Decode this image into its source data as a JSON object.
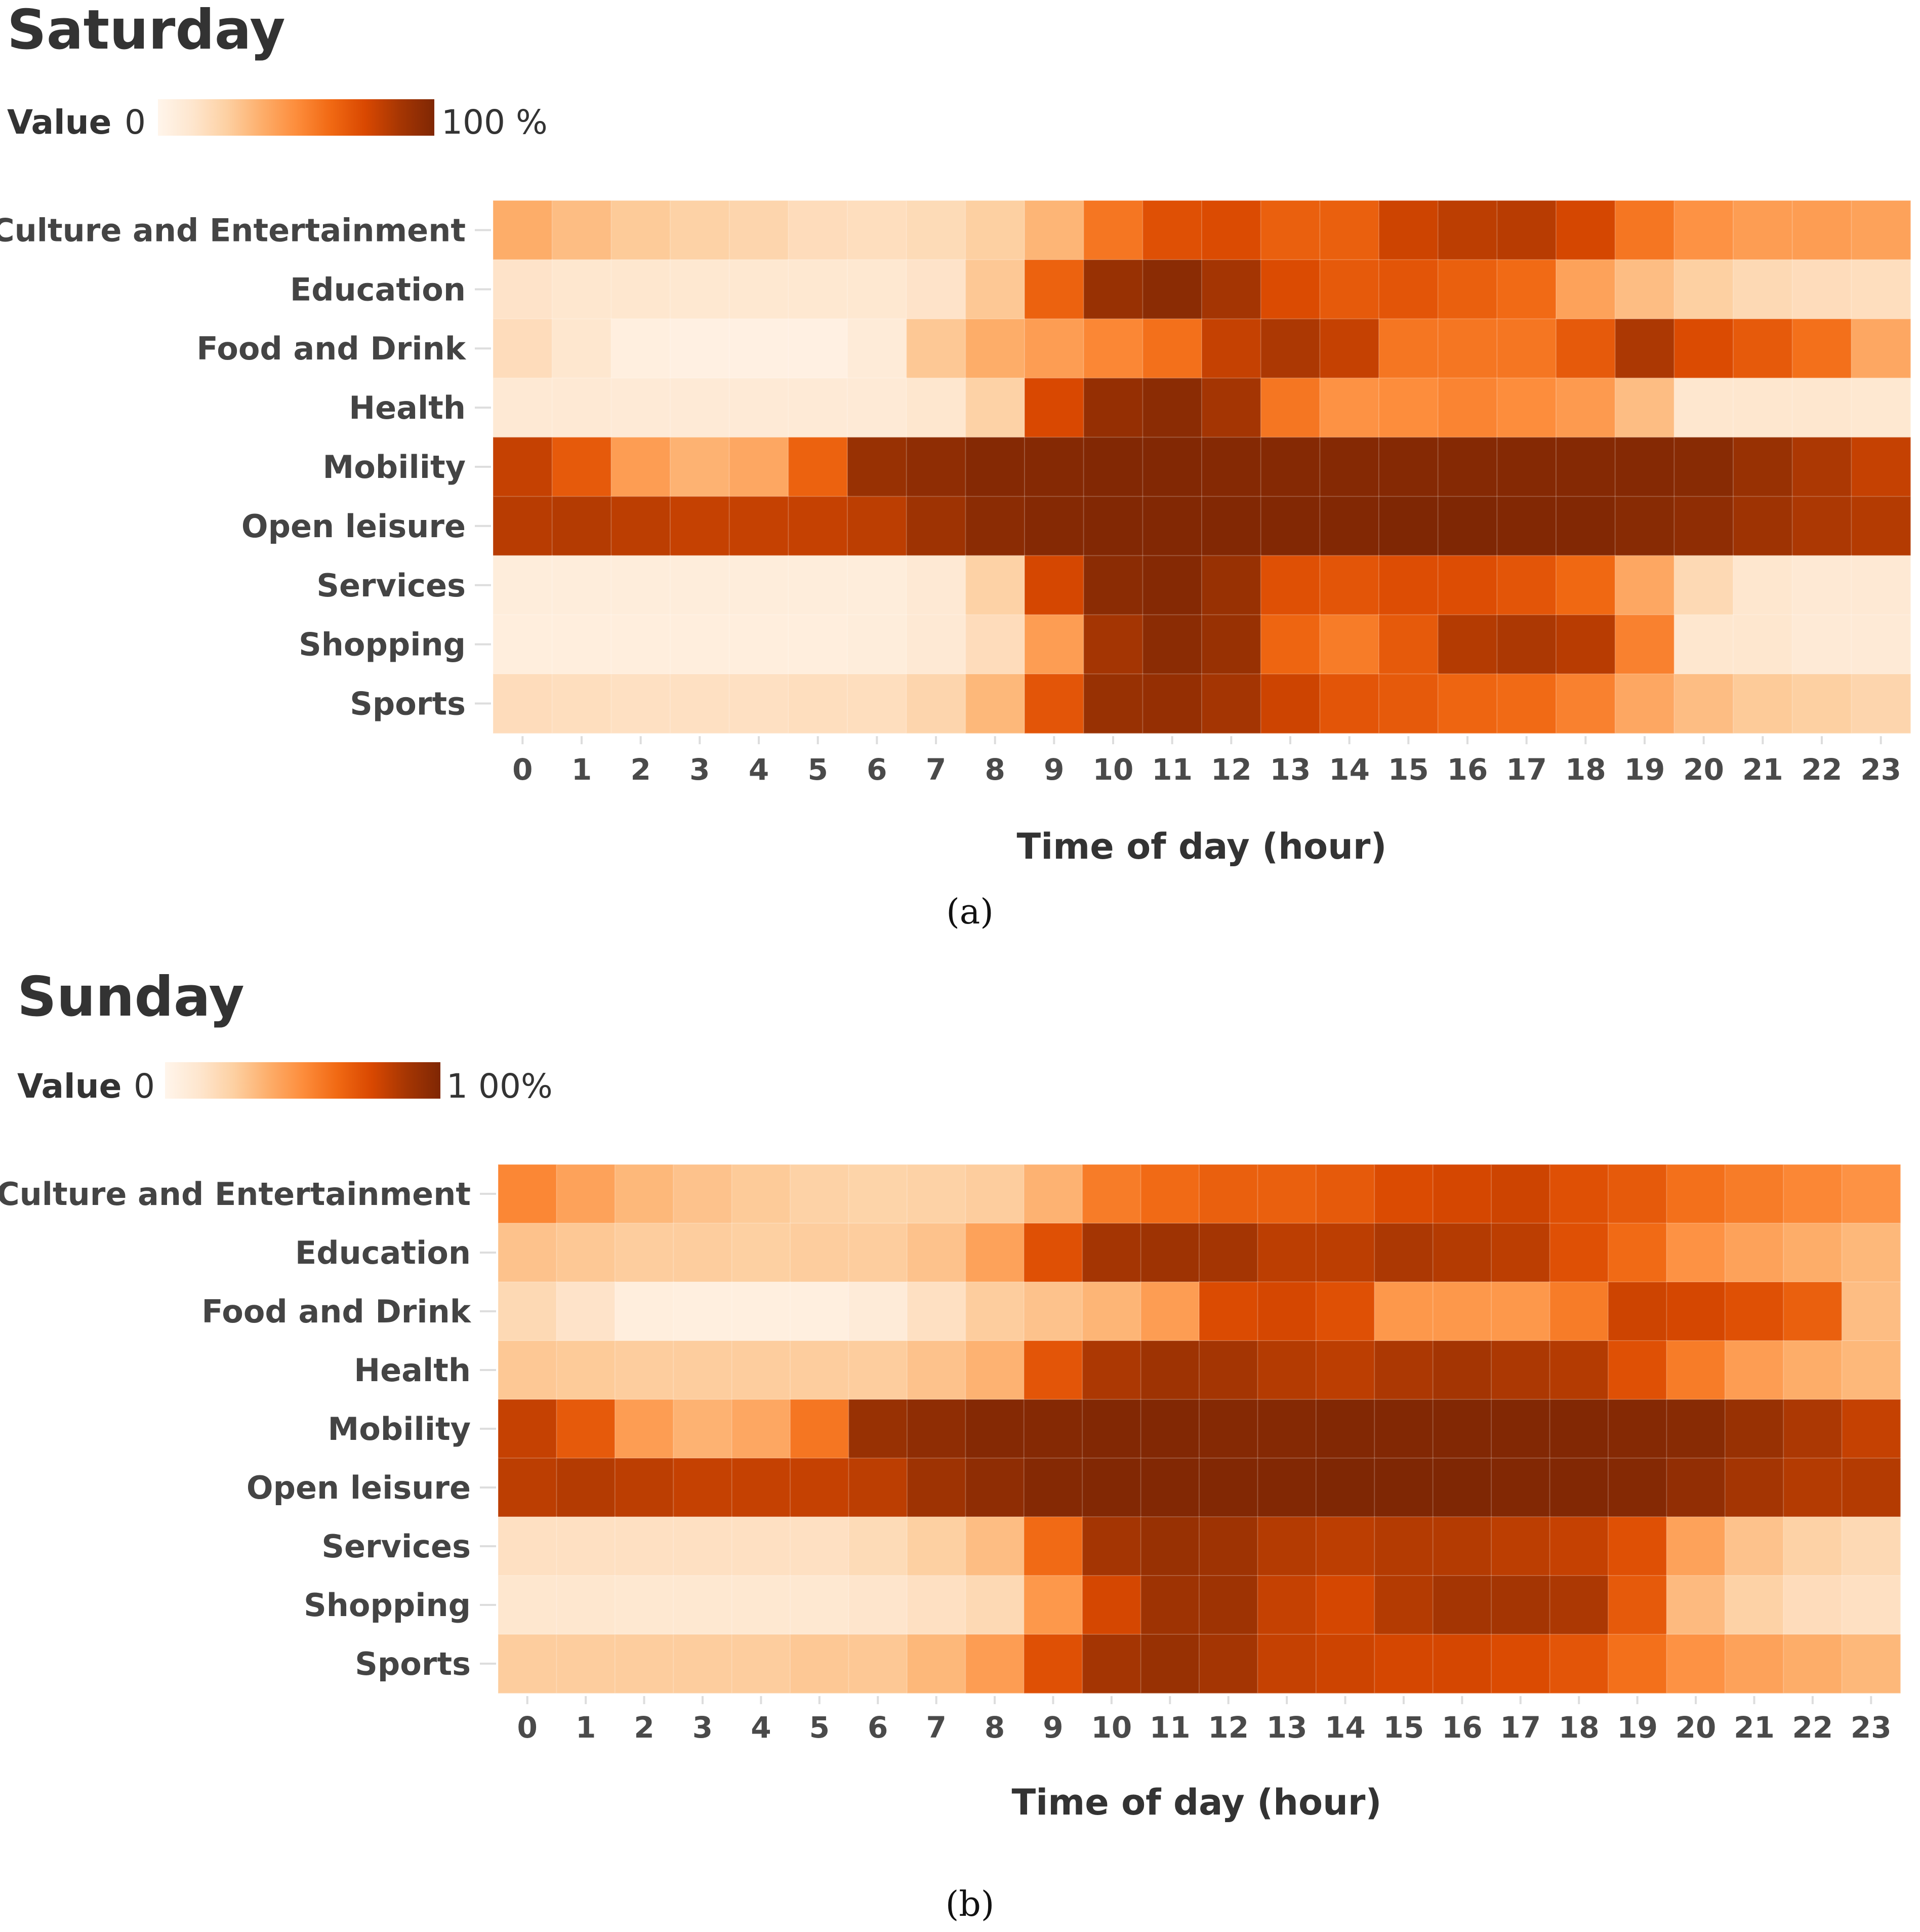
{
  "colors": {
    "scale": [
      "#fff5eb",
      "#fee6ce",
      "#fdd0a2",
      "#fdae6b",
      "#fd8d3c",
      "#f16913",
      "#d94801",
      "#a63603",
      "#7f2704"
    ],
    "tick_mark": "#dddddd",
    "text": "#333333"
  },
  "chart_data": [
    {
      "type": "heatmap",
      "title": "Saturday",
      "legend": {
        "label": "Value",
        "min_label": "0",
        "max_label": "100 %"
      },
      "xlabel": "Time of day (hour)",
      "caption": "(a)",
      "x": [
        "0",
        "1",
        "2",
        "3",
        "4",
        "5",
        "6",
        "7",
        "8",
        "9",
        "10",
        "11",
        "12",
        "13",
        "14",
        "15",
        "16",
        "17",
        "18",
        "19",
        "20",
        "21",
        "22",
        "23"
      ],
      "categories": [
        "Culture and Entertainment",
        "Education",
        "Food and Drink",
        "Health",
        "Mobility",
        "Open leisure",
        "Services",
        "Shopping",
        "Sports"
      ],
      "value_range": [
        0,
        100
      ],
      "values": [
        [
          38,
          32,
          27,
          24,
          22,
          18,
          17,
          19,
          25,
          35,
          58,
          72,
          74,
          66,
          66,
          78,
          82,
          83,
          76,
          58,
          48,
          44,
          44,
          42
        ],
        [
          14,
          12,
          12,
          11,
          11,
          11,
          11,
          14,
          28,
          65,
          92,
          96,
          88,
          74,
          68,
          70,
          66,
          62,
          42,
          32,
          25,
          20,
          18,
          17
        ],
        [
          18,
          12,
          5,
          4,
          4,
          4,
          8,
          28,
          38,
          44,
          52,
          60,
          80,
          86,
          80,
          58,
          58,
          58,
          68,
          86,
          74,
          68,
          60,
          40
        ],
        [
          10,
          10,
          9,
          9,
          9,
          9,
          9,
          12,
          24,
          75,
          93,
          96,
          88,
          58,
          48,
          50,
          53,
          50,
          45,
          32,
          12,
          12,
          12,
          11
        ],
        [
          80,
          68,
          44,
          36,
          40,
          65,
          92,
          95,
          98,
          98,
          99,
          99,
          98,
          98,
          98,
          98,
          98,
          98,
          98,
          98,
          97,
          92,
          86,
          80
        ],
        [
          83,
          84,
          82,
          80,
          80,
          80,
          82,
          90,
          96,
          98,
          99,
          99,
          99,
          99,
          99,
          100,
          100,
          99,
          99,
          97,
          95,
          90,
          86,
          84
        ],
        [
          7,
          7,
          7,
          7,
          7,
          7,
          7,
          10,
          24,
          76,
          96,
          98,
          92,
          72,
          70,
          73,
          73,
          70,
          63,
          40,
          20,
          12,
          10,
          10
        ],
        [
          6,
          6,
          6,
          6,
          6,
          6,
          7,
          10,
          18,
          44,
          88,
          96,
          92,
          64,
          56,
          68,
          84,
          86,
          83,
          54,
          12,
          12,
          9,
          9
        ],
        [
          18,
          17,
          16,
          16,
          16,
          17,
          17,
          22,
          34,
          70,
          92,
          93,
          88,
          78,
          70,
          68,
          64,
          62,
          54,
          40,
          32,
          27,
          25,
          22
        ]
      ]
    },
    {
      "type": "heatmap",
      "title": "Sunday",
      "legend": {
        "label": "Value",
        "min_label": "0",
        "max_label": "1 00%"
      },
      "xlabel": "Time of day (hour)",
      "caption": "(b)",
      "x": [
        "0",
        "1",
        "2",
        "3",
        "4",
        "5",
        "6",
        "7",
        "8",
        "9",
        "10",
        "11",
        "12",
        "13",
        "14",
        "15",
        "16",
        "17",
        "18",
        "19",
        "20",
        "21",
        "22",
        "23"
      ],
      "categories": [
        "Culture and Entertainment",
        "Education",
        "Food and Drink",
        "Health",
        "Mobility",
        "Open leisure",
        "Services",
        "Shopping",
        "Sports"
      ],
      "value_range": [
        0,
        100
      ],
      "values": [
        [
          52,
          42,
          34,
          30,
          27,
          24,
          23,
          24,
          26,
          36,
          56,
          62,
          66,
          66,
          68,
          74,
          76,
          78,
          72,
          68,
          60,
          56,
          52,
          48
        ],
        [
          30,
          28,
          26,
          26,
          25,
          26,
          26,
          30,
          42,
          72,
          88,
          90,
          88,
          82,
          82,
          86,
          84,
          82,
          72,
          62,
          48,
          42,
          38,
          34
        ],
        [
          20,
          14,
          6,
          5,
          5,
          5,
          8,
          16,
          26,
          30,
          35,
          44,
          74,
          76,
          72,
          46,
          46,
          46,
          56,
          78,
          76,
          72,
          66,
          32
        ],
        [
          28,
          27,
          26,
          26,
          26,
          26,
          26,
          30,
          36,
          70,
          86,
          90,
          88,
          84,
          82,
          86,
          88,
          86,
          84,
          72,
          56,
          44,
          38,
          34
        ],
        [
          80,
          68,
          44,
          36,
          40,
          58,
          92,
          95,
          98,
          98,
          99,
          99,
          98,
          98,
          99,
          99,
          99,
          99,
          99,
          98,
          97,
          92,
          86,
          80
        ],
        [
          82,
          84,
          82,
          80,
          80,
          80,
          82,
          90,
          95,
          98,
          99,
          99,
          99,
          99,
          100,
          100,
          100,
          99,
          99,
          98,
          94,
          88,
          84,
          84
        ],
        [
          16,
          16,
          16,
          16,
          16,
          16,
          19,
          25,
          32,
          62,
          88,
          92,
          90,
          84,
          82,
          84,
          84,
          82,
          80,
          72,
          42,
          30,
          24,
          20
        ],
        [
          12,
          12,
          11,
          11,
          11,
          11,
          13,
          16,
          20,
          46,
          76,
          90,
          90,
          80,
          76,
          84,
          88,
          88,
          86,
          68,
          33,
          24,
          18,
          16
        ],
        [
          26,
          26,
          26,
          26,
          26,
          28,
          28,
          34,
          44,
          72,
          88,
          92,
          88,
          80,
          78,
          76,
          76,
          74,
          70,
          60,
          48,
          42,
          38,
          34
        ]
      ]
    }
  ]
}
